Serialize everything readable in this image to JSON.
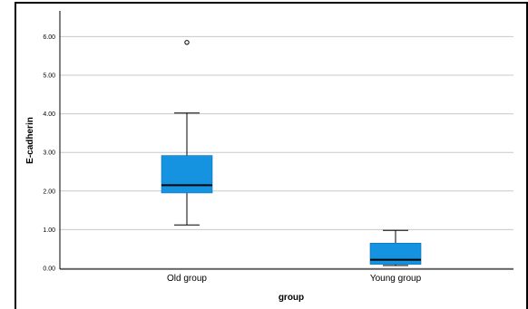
{
  "chart_data": {
    "type": "box",
    "title": "",
    "xlabel": "group",
    "ylabel": "E-cadherin",
    "ylim": [
      0,
      6.5
    ],
    "yticks": [
      "0.00",
      "1.00",
      "2.00",
      "3.00",
      "4.00",
      "5.00",
      "6.00"
    ],
    "categories": [
      "Old group",
      "Young group"
    ],
    "boxes": [
      {
        "category": "Old group",
        "whisker_low": 1.12,
        "q1": 1.95,
        "median": 2.15,
        "q3": 2.92,
        "whisker_high": 4.02,
        "outliers": [
          5.85
        ]
      },
      {
        "category": "Young group",
        "whisker_low": 0.07,
        "q1": 0.1,
        "median": 0.22,
        "q3": 0.65,
        "whisker_high": 0.98,
        "outliers": []
      }
    ],
    "grid": true,
    "box_color": "#1693e0"
  }
}
